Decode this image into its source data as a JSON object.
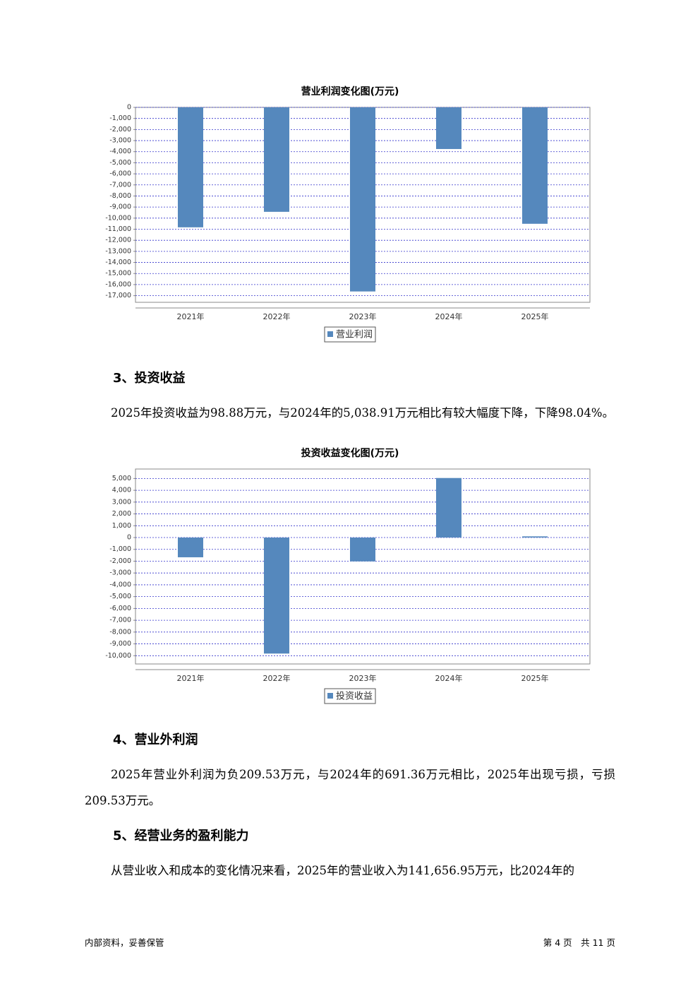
{
  "chart_data": [
    {
      "type": "bar",
      "title": "营业利润变化图(万元)",
      "categories": [
        "2021年",
        "2022年",
        "2023年",
        "2024年",
        "2025年"
      ],
      "series": [
        {
          "name": "营业利润",
          "color": "#5588bd",
          "values": [
            -10830,
            -9430,
            -16620,
            -3760,
            -10510
          ]
        }
      ],
      "ylim": [
        -17600,
        0
      ],
      "yticks": [
        0,
        {
          "value": -1000,
          "label": "-1,000"
        },
        {
          "value": -2000,
          "label": "-2,000"
        },
        {
          "value": -3000,
          "label": "-3,000"
        },
        {
          "value": -4000,
          "label": "-4,000"
        },
        {
          "value": -5000,
          "label": "-5,000"
        },
        {
          "value": -6000,
          "label": "-6,000"
        },
        {
          "value": -7000,
          "label": "-7,000"
        },
        {
          "value": -8000,
          "label": "-8,000"
        },
        {
          "value": -9000,
          "label": "-9,000"
        },
        {
          "value": -10000,
          "label": "-10,000"
        },
        {
          "value": -11000,
          "label": "-11,000"
        },
        {
          "value": -12000,
          "label": "-12,000"
        },
        {
          "value": -13000,
          "label": "-13,000"
        },
        {
          "value": -14000,
          "label": "-14,000"
        },
        {
          "value": -15000,
          "label": "-15,000"
        },
        {
          "value": -16000,
          "label": "-16,000"
        },
        {
          "value": -17000,
          "label": "-17,000"
        }
      ],
      "grid": true,
      "legend": "bottom"
    },
    {
      "type": "bar",
      "title": "投资收益变化图(万元)",
      "categories": [
        "2021年",
        "2022年",
        "2023年",
        "2024年",
        "2025年"
      ],
      "series": [
        {
          "name": "投资收益",
          "color": "#5588bd",
          "values": [
            -1670,
            -9820,
            -2020,
            5038.91,
            98.88
          ]
        }
      ],
      "ylim": [
        -10700,
        5800
      ],
      "yticks": [
        {
          "value": 5000,
          "label": "5,000"
        },
        {
          "value": 4000,
          "label": "4,000"
        },
        {
          "value": 3000,
          "label": "3,000"
        },
        {
          "value": 2000,
          "label": "2,000"
        },
        {
          "value": 1000,
          "label": "1,000"
        },
        0,
        {
          "value": -1000,
          "label": "-1,000"
        },
        {
          "value": -2000,
          "label": "-2,000"
        },
        {
          "value": -3000,
          "label": "-3,000"
        },
        {
          "value": -4000,
          "label": "-4,000"
        },
        {
          "value": -5000,
          "label": "-5,000"
        },
        {
          "value": -6000,
          "label": "-6,000"
        },
        {
          "value": -7000,
          "label": "-7,000"
        },
        {
          "value": -8000,
          "label": "-8,000"
        },
        {
          "value": -9000,
          "label": "-9,000"
        },
        {
          "value": -10000,
          "label": "-10,000"
        }
      ],
      "grid": true,
      "legend": "bottom"
    }
  ],
  "sections": [
    {
      "heading": "3、投资收益",
      "text": "2025年投资收益为98.88万元，与2024年的5,038.91万元相比有较大幅度下降，下降98.04%。"
    },
    {
      "heading": "4、营业外利润",
      "text": "2025年营业外利润为负209.53万元，与2024年的691.36万元相比，2025年出现亏损，亏损209.53万元。"
    },
    {
      "heading": "5、经营业务的盈利能力",
      "text": "从营业收入和成本的变化情况来看，2025年的营业收入为141,656.95万元，比2024年的"
    }
  ],
  "footer": {
    "left": "内部资料，妥善保管",
    "right": "第 4 页　共 11 页"
  }
}
